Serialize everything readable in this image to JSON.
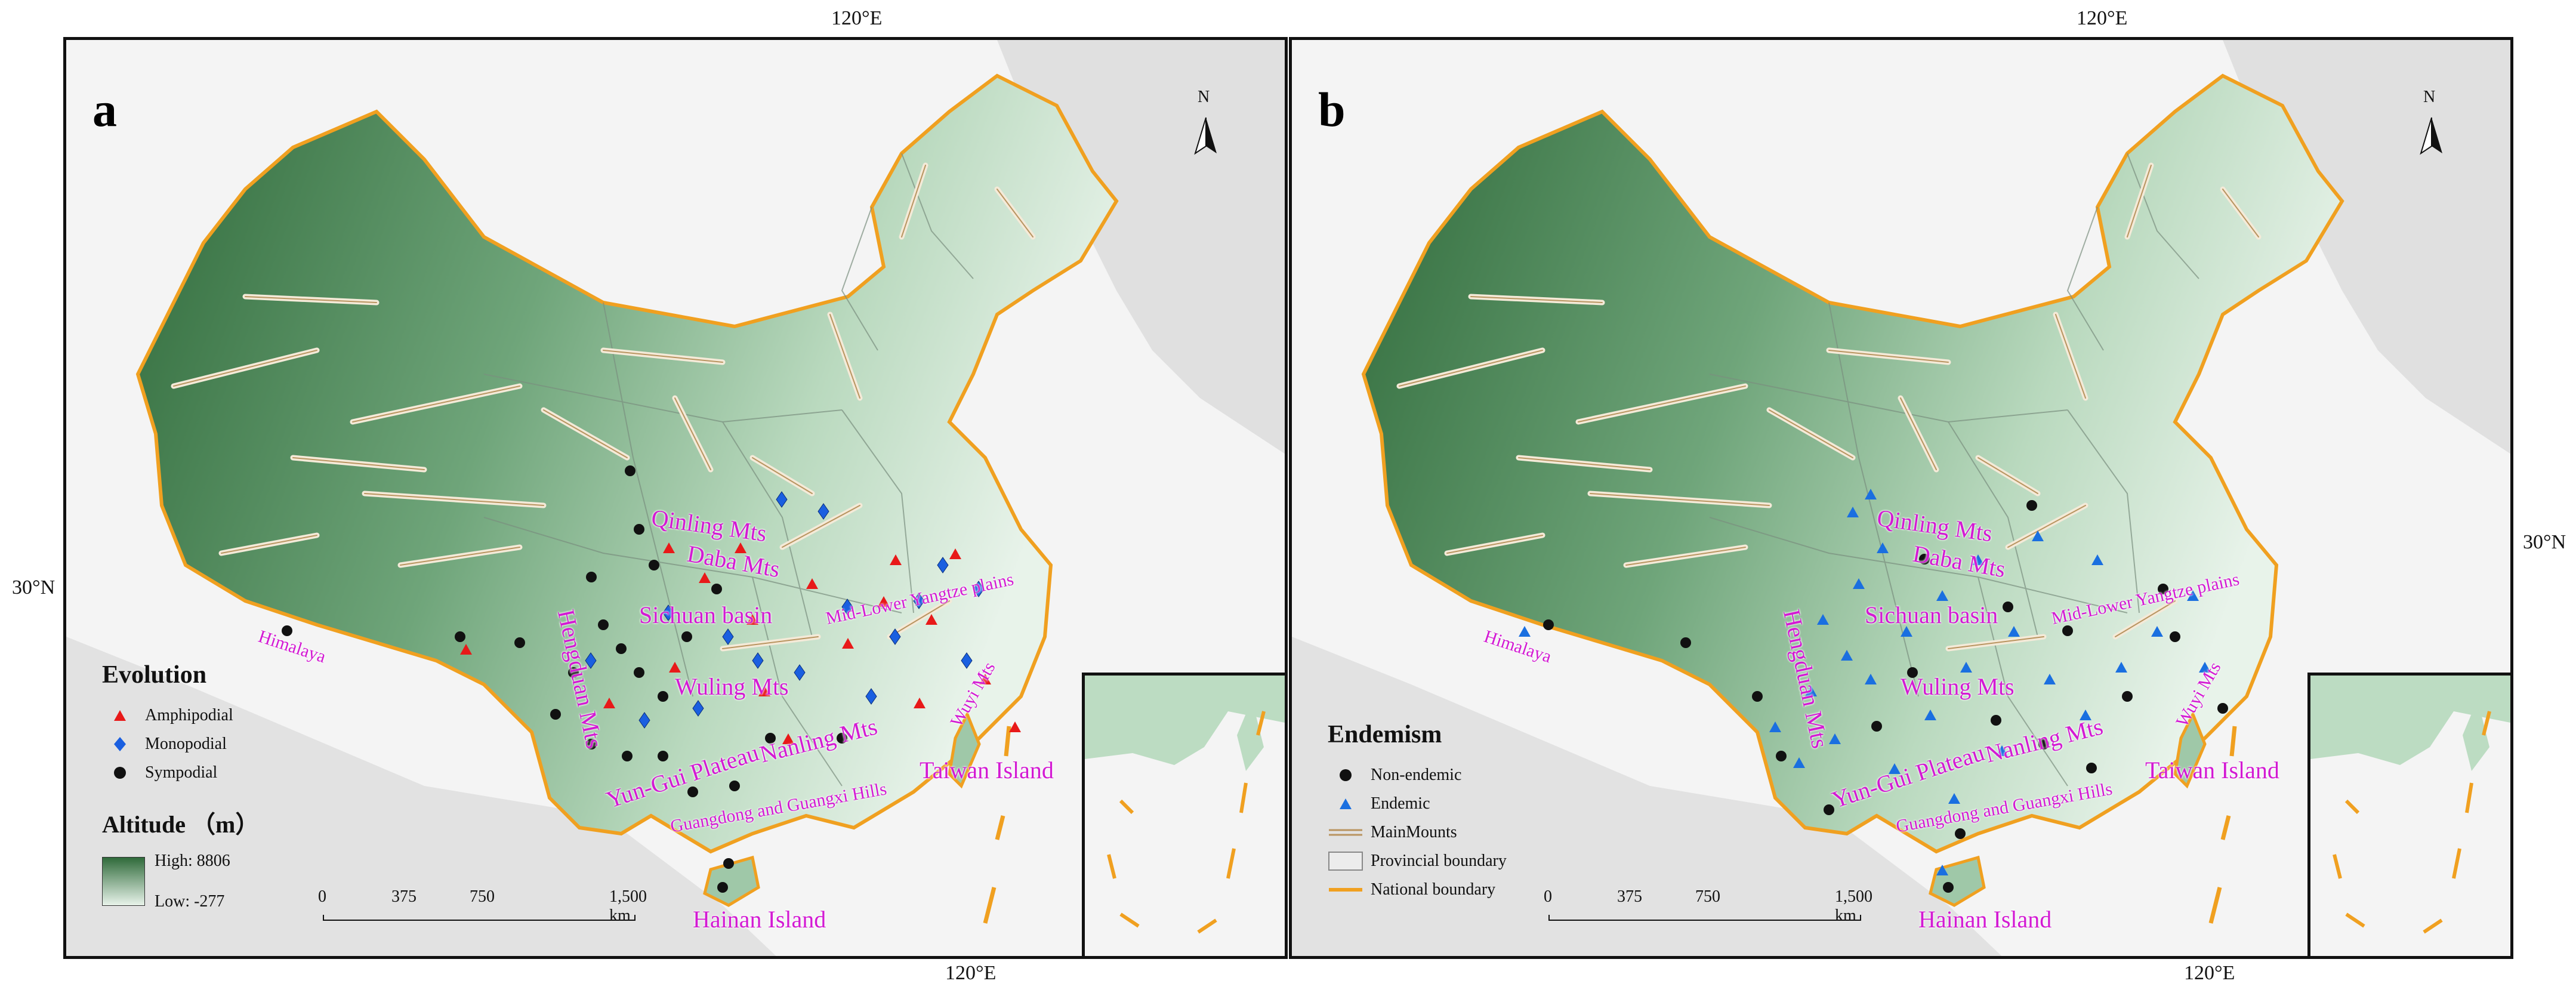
{
  "graticule": {
    "top_a": "120°E",
    "top_b": "120°E",
    "bottom_a": "120°E",
    "bottom_b": "120°E",
    "left_lat": "30°N",
    "right_lat": "30°N"
  },
  "panel_a": {
    "label": "a",
    "north": "N",
    "legend": {
      "title": "Evolution",
      "items": [
        {
          "label": "Amphipodial",
          "shape": "triangle",
          "color": "#e81919"
        },
        {
          "label": "Monopodial",
          "shape": "diamond",
          "color": "#1a5fe0"
        },
        {
          "label": "Sympodial",
          "shape": "circle",
          "color": "#111111"
        }
      ],
      "altitude_title": "Altitude （m）",
      "altitude_high": "High: 8806",
      "altitude_low": "Low: -277"
    },
    "scale": {
      "labels": [
        "0",
        "375",
        "750",
        "1,500 km"
      ]
    }
  },
  "panel_b": {
    "label": "b",
    "north": "N",
    "legend": {
      "title": "Endemism",
      "items": [
        {
          "label": "Non-endemic",
          "shape": "circle",
          "color": "#111111"
        },
        {
          "label": "Endemic",
          "shape": "triangle",
          "color": "#1a6fe0"
        },
        {
          "label": "MainMounts",
          "shape": "double-line",
          "color": "#c8a97a"
        },
        {
          "label": "Provincial boundary",
          "shape": "box",
          "color": "#bbbbbb"
        },
        {
          "label": "National boundary",
          "shape": "line",
          "color": "#f0a020"
        }
      ]
    },
    "scale": {
      "labels": [
        "0",
        "375",
        "750",
        "1,500 km"
      ]
    }
  },
  "regions": {
    "qinling": "Qinling Mts",
    "daba": "Daba Mts",
    "sichuan": "Sichuan basin",
    "midlower": "Mid-Lower Yangtze plains",
    "wuling": "Wuling Mts",
    "hengduan": "Hengduan Mts",
    "yungui": "Yun-Gui Plateau",
    "nanling": "Nanling Mts",
    "guangdong": "Guangdong and Guangxi Hills",
    "taiwan": "Taiwan Island",
    "hainan": "Hainan Island",
    "himalaya": "Himalaya",
    "wuyi": "Wuyi Mts"
  },
  "colors": {
    "terrain_high": "#2f6a3a",
    "terrain_low": "#e8f3ea",
    "national_boundary": "#f0a020",
    "mountains": "#c8a97a",
    "region_label": "#d31ad3"
  }
}
